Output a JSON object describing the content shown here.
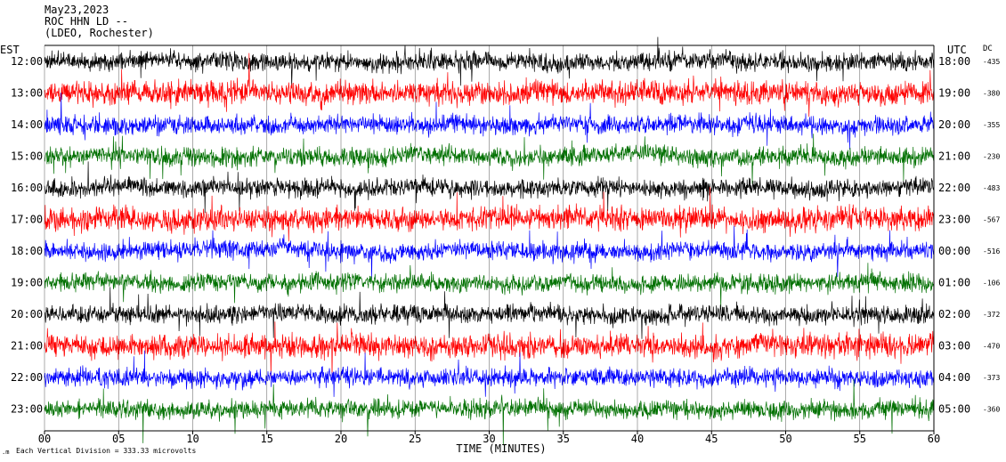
{
  "header": {
    "date": "May23,2023",
    "station": "ROC HHN LD --",
    "location": "(LDEO, Rochester)"
  },
  "labels": {
    "left_zone": "EST",
    "right_zone": "UTC",
    "dc_header": "DC",
    "x_axis_title": "TIME (MINUTES)",
    "footer_note": "Each Vertical Division =  333.33 microvolts"
  },
  "colors": {
    "trace_cycle": [
      "#000000",
      "#ff0000",
      "#0000ff",
      "#007000"
    ],
    "axis": "#000000",
    "background": "#ffffff"
  },
  "chart_data": {
    "type": "line",
    "x_unit": "minutes",
    "xlim": [
      0,
      60
    ],
    "x_ticks": [
      "00",
      "05",
      "10",
      "15",
      "20",
      "25",
      "30",
      "35",
      "40",
      "45",
      "50",
      "55",
      "60"
    ],
    "x_tick_values": [
      0,
      5,
      10,
      15,
      20,
      25,
      30,
      35,
      40,
      45,
      50,
      55,
      60
    ],
    "rows": [
      {
        "est": "12:00",
        "utc": "18:00",
        "dc": "-435",
        "color": "#000000"
      },
      {
        "est": "13:00",
        "utc": "19:00",
        "dc": "-380",
        "color": "#ff0000"
      },
      {
        "est": "14:00",
        "utc": "20:00",
        "dc": "-355",
        "color": "#0000ff"
      },
      {
        "est": "15:00",
        "utc": "21:00",
        "dc": "-230",
        "color": "#007000"
      },
      {
        "est": "16:00",
        "utc": "22:00",
        "dc": "-483",
        "color": "#000000"
      },
      {
        "est": "17:00",
        "utc": "23:00",
        "dc": "-567",
        "color": "#ff0000"
      },
      {
        "est": "18:00",
        "utc": "00:00",
        "dc": "-516",
        "color": "#0000ff"
      },
      {
        "est": "19:00",
        "utc": "01:00",
        "dc": "-106",
        "color": "#007000"
      },
      {
        "est": "20:00",
        "utc": "02:00",
        "dc": "-372",
        "color": "#000000"
      },
      {
        "est": "21:00",
        "utc": "03:00",
        "dc": "-470",
        "color": "#ff0000"
      },
      {
        "est": "22:00",
        "utc": "04:00",
        "dc": "-373",
        "color": "#0000ff"
      },
      {
        "est": "23:00",
        "utc": "05:00",
        "dc": "-360",
        "color": "#007000"
      }
    ]
  }
}
